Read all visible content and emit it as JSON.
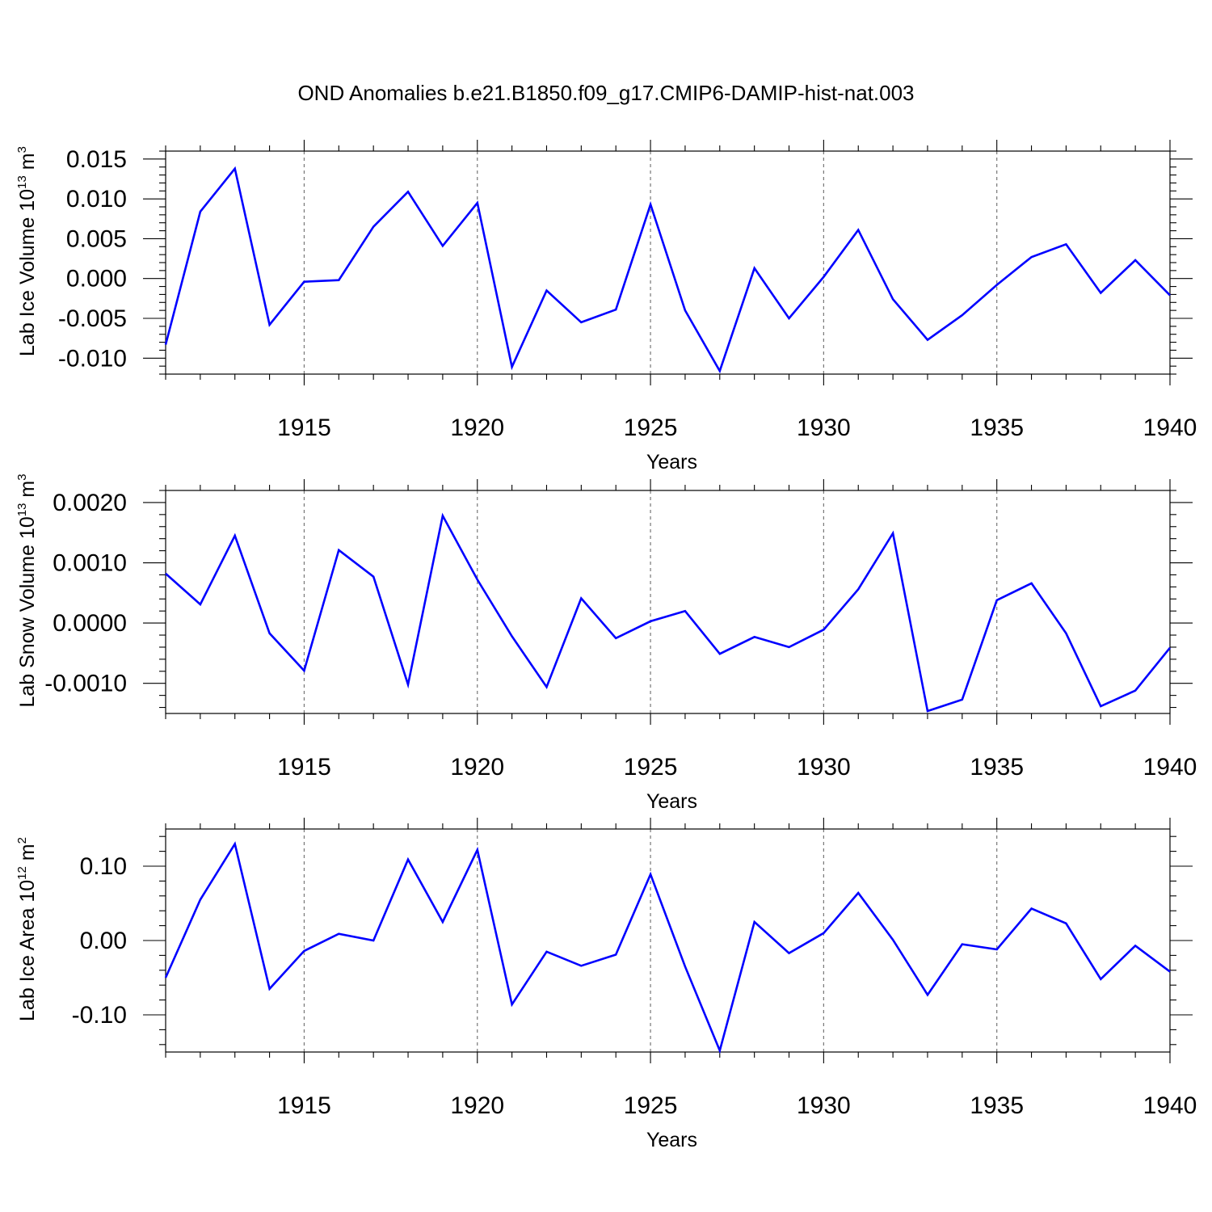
{
  "title": "OND Anomalies b.e21.B1850.f09_g17.CMIP6-DAMIP-hist-nat.003",
  "colors": {
    "series": "#0000ff",
    "grid": "#777777",
    "axis": "#000000"
  },
  "chart_data": [
    {
      "type": "line",
      "ylabel": "Lab Ice Volume 10",
      "ylabel_exp": "13",
      "ylabel_unit": "m",
      "ylabel_unit_exp": "3",
      "xlabel": "Years",
      "xlim": [
        1911,
        1940
      ],
      "ylim": [
        -0.012,
        0.016
      ],
      "yticks": [
        -0.01,
        -0.005,
        0.0,
        0.005,
        0.01,
        0.015
      ],
      "ytick_labels": [
        "-0.010",
        "-0.005",
        "0.000",
        "0.005",
        "0.010",
        "0.015"
      ],
      "yminor": 0.001,
      "xticks": [
        1915,
        1920,
        1925,
        1930,
        1935,
        1940
      ],
      "xtick_labels": [
        "1915",
        "1920",
        "1925",
        "1930",
        "1935",
        "1940"
      ],
      "grid": "x-dashed",
      "x": [
        1911,
        1912,
        1913,
        1914,
        1915,
        1916,
        1917,
        1918,
        1919,
        1920,
        1921,
        1922,
        1923,
        1924,
        1925,
        1926,
        1927,
        1928,
        1929,
        1930,
        1931,
        1932,
        1933,
        1934,
        1935,
        1936,
        1937,
        1938,
        1939,
        1940
      ],
      "values": [
        -0.0083,
        0.0084,
        0.0138,
        -0.0058,
        -0.0004,
        -0.0002,
        0.0065,
        0.0109,
        0.0041,
        0.0095,
        -0.0111,
        -0.0015,
        -0.0055,
        -0.0039,
        0.0093,
        -0.004,
        -0.0116,
        0.0013,
        -0.005,
        0.0002,
        0.0061,
        -0.0026,
        -0.0077,
        -0.0046,
        -0.0008,
        0.0027,
        0.0043,
        -0.0018,
        0.0023,
        -0.0021
      ]
    },
    {
      "type": "line",
      "ylabel": "Lab Snow Volume 10",
      "ylabel_exp": "13",
      "ylabel_unit": "m",
      "ylabel_unit_exp": "3",
      "xlabel": "Years",
      "xlim": [
        1911,
        1940
      ],
      "ylim": [
        -0.0015,
        0.0022
      ],
      "yticks": [
        -0.001,
        0.0,
        0.001,
        0.002
      ],
      "ytick_labels": [
        "-0.0010",
        "0.0000",
        "0.0010",
        "0.0020"
      ],
      "yminor": 0.0002,
      "xticks": [
        1915,
        1920,
        1925,
        1930,
        1935,
        1940
      ],
      "xtick_labels": [
        "1915",
        "1920",
        "1925",
        "1930",
        "1935",
        "1940"
      ],
      "grid": "x-dashed",
      "x": [
        1911,
        1912,
        1913,
        1914,
        1915,
        1916,
        1917,
        1918,
        1919,
        1920,
        1921,
        1922,
        1923,
        1924,
        1925,
        1926,
        1927,
        1928,
        1929,
        1930,
        1931,
        1932,
        1933,
        1934,
        1935,
        1936,
        1937,
        1938,
        1939,
        1940
      ],
      "values": [
        0.00082,
        0.00031,
        0.00145,
        -0.00017,
        -0.00079,
        0.00121,
        0.00077,
        -0.00102,
        0.00178,
        0.00072,
        -0.00022,
        -0.00106,
        0.00041,
        -0.00025,
        3e-05,
        0.0002,
        -0.00051,
        -0.00023,
        -0.0004,
        -0.00011,
        0.00056,
        0.00149,
        -0.00146,
        -0.00127,
        0.00038,
        0.00066,
        -0.00017,
        -0.00138,
        -0.00112,
        -0.00041
      ]
    },
    {
      "type": "line",
      "ylabel": "Lab Ice Area 10",
      "ylabel_exp": "12",
      "ylabel_unit": "m",
      "ylabel_unit_exp": "2",
      "xlabel": "Years",
      "xlim": [
        1911,
        1940
      ],
      "ylim": [
        -0.15,
        0.15
      ],
      "yticks": [
        -0.1,
        0.0,
        0.1
      ],
      "ytick_labels": [
        "-0.10",
        "0.00",
        "0.10"
      ],
      "yminor": 0.02,
      "xticks": [
        1915,
        1920,
        1925,
        1930,
        1935,
        1940
      ],
      "xtick_labels": [
        "1915",
        "1920",
        "1925",
        "1930",
        "1935",
        "1940"
      ],
      "grid": "x-dashed",
      "x": [
        1911,
        1912,
        1913,
        1914,
        1915,
        1916,
        1917,
        1918,
        1919,
        1920,
        1921,
        1922,
        1923,
        1924,
        1925,
        1926,
        1927,
        1928,
        1929,
        1930,
        1931,
        1932,
        1933,
        1934,
        1935,
        1936,
        1937,
        1938,
        1939,
        1940
      ],
      "values": [
        -0.05,
        0.055,
        0.13,
        -0.065,
        -0.014,
        0.009,
        0.0,
        0.109,
        0.025,
        0.122,
        -0.086,
        -0.015,
        -0.034,
        -0.019,
        0.089,
        -0.035,
        -0.148,
        0.025,
        -0.017,
        0.01,
        0.064,
        0.001,
        -0.073,
        -0.005,
        -0.012,
        0.043,
        0.023,
        -0.052,
        -0.007,
        -0.042
      ]
    }
  ]
}
